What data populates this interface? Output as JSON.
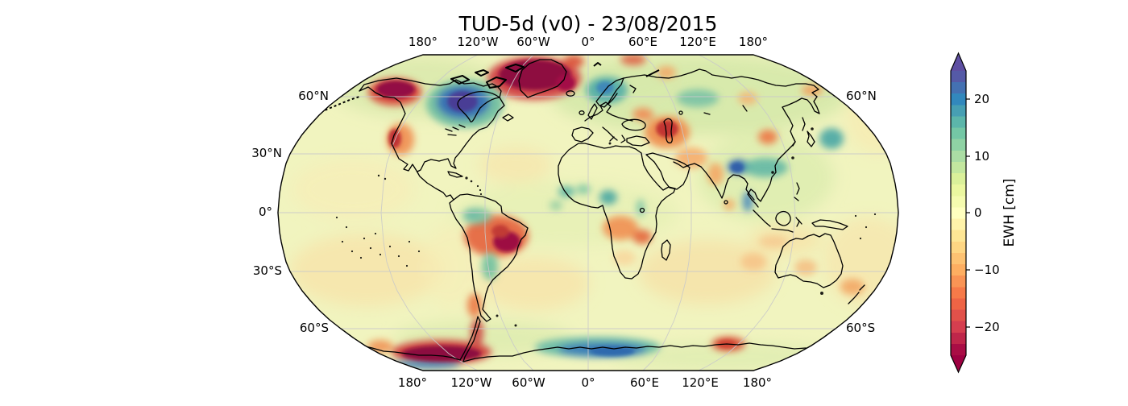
{
  "title": "TUD-5d (v0) - 23/08/2015",
  "map": {
    "projection": "Robinson",
    "lon_ticks": [
      "180°",
      "120°W",
      "60°W",
      "0°",
      "60°E",
      "120°E",
      "180°"
    ],
    "lat_ticks_left": [
      "60°N",
      "30°N",
      "0°",
      "30°S",
      "60°S"
    ],
    "lat_ticks_right": [
      "60°N",
      "60°S"
    ],
    "base_color": "#f1f4bf",
    "gridline_color": "#c9c9c9",
    "coastline_color": "#000000"
  },
  "colorbar": {
    "label": "EWH [cm]",
    "ticks": [
      {
        "label": "20",
        "value": 20
      },
      {
        "label": "10",
        "value": 10
      },
      {
        "label": "0",
        "value": 0
      },
      {
        "label": "−10",
        "value": -10
      },
      {
        "label": "−20",
        "value": -20
      }
    ],
    "range": [
      -25,
      25
    ],
    "extend": "both",
    "colors": [
      "#9e0142",
      "#d53e4f",
      "#f46d43",
      "#fdae61",
      "#fee08b",
      "#ffffbf",
      "#e6f598",
      "#abdda4",
      "#66c2a5",
      "#3288bd",
      "#5e4fa2"
    ]
  },
  "chart_data": {
    "type": "heatmap",
    "title": "TUD-5d (v0) - 23/08/2015",
    "date": "23/08/2015",
    "product": "TUD-5d",
    "version": "v0",
    "projection": "Robinson",
    "variable": "EWH [cm]",
    "value_range": [
      -25,
      25
    ],
    "colorbar_ticks": [
      -20,
      -10,
      0,
      10,
      20
    ],
    "colormap": "Spectral",
    "gridlines": {
      "lon_step_deg": 60,
      "lat_step_deg": 30,
      "visible": true
    },
    "notable_anomalies": [
      {
        "region": "Greenland",
        "sign": "negative",
        "value_cm": -25
      },
      {
        "region": "Gulf of Alaska / coastal Alaska",
        "sign": "negative",
        "value_cm": -25
      },
      {
        "region": "US west coast",
        "sign": "negative",
        "value_cm": -15
      },
      {
        "region": "Hudson Bay / central Canada",
        "sign": "positive",
        "value_cm": 25
      },
      {
        "region": "Scandinavia / Baltic",
        "sign": "positive",
        "value_cm": 14
      },
      {
        "region": "Central Siberia",
        "sign": "positive",
        "value_cm": 8
      },
      {
        "region": "Caspian Sea region",
        "sign": "negative",
        "value_cm": -18
      },
      {
        "region": "Ukraine / north of Black Sea",
        "sign": "negative",
        "value_cm": -8
      },
      {
        "region": "Iran / Central Asia",
        "sign": "negative",
        "value_cm": -6
      },
      {
        "region": "NE China",
        "sign": "negative",
        "value_cm": -10
      },
      {
        "region": "Sea of Okhotsk / Kuril",
        "sign": "positive",
        "value_cm": 10
      },
      {
        "region": "Himalayas / NE India",
        "sign": "positive",
        "value_cm": 16
      },
      {
        "region": "Indochina / S China",
        "sign": "positive",
        "value_cm": 8
      },
      {
        "region": "Western India",
        "sign": "negative",
        "value_cm": -8
      },
      {
        "region": "Sahel / Sudan",
        "sign": "positive",
        "value_cm": 8
      },
      {
        "region": "Central Africa (Congo-Angola)",
        "sign": "negative",
        "value_cm": -10
      },
      {
        "region": "NW Amazon",
        "sign": "positive",
        "value_cm": 14
      },
      {
        "region": "Eastern Brazil",
        "sign": "negative",
        "value_cm": -23
      },
      {
        "region": "Paraná basin",
        "sign": "positive",
        "value_cm": 8
      },
      {
        "region": "Southern Chile",
        "sign": "negative",
        "value_cm": -12
      },
      {
        "region": "Western Australia",
        "sign": "negative",
        "value_cm": -5
      },
      {
        "region": "New Zealand region",
        "sign": "negative",
        "value_cm": -8
      },
      {
        "region": "West Antarctica",
        "sign": "negative",
        "value_cm": -25
      },
      {
        "region": "East Antarctica coast 0-90E",
        "sign": "positive",
        "value_cm": 18
      },
      {
        "region": "Antarctica near 150E",
        "sign": "negative",
        "value_cm": -12
      }
    ]
  }
}
